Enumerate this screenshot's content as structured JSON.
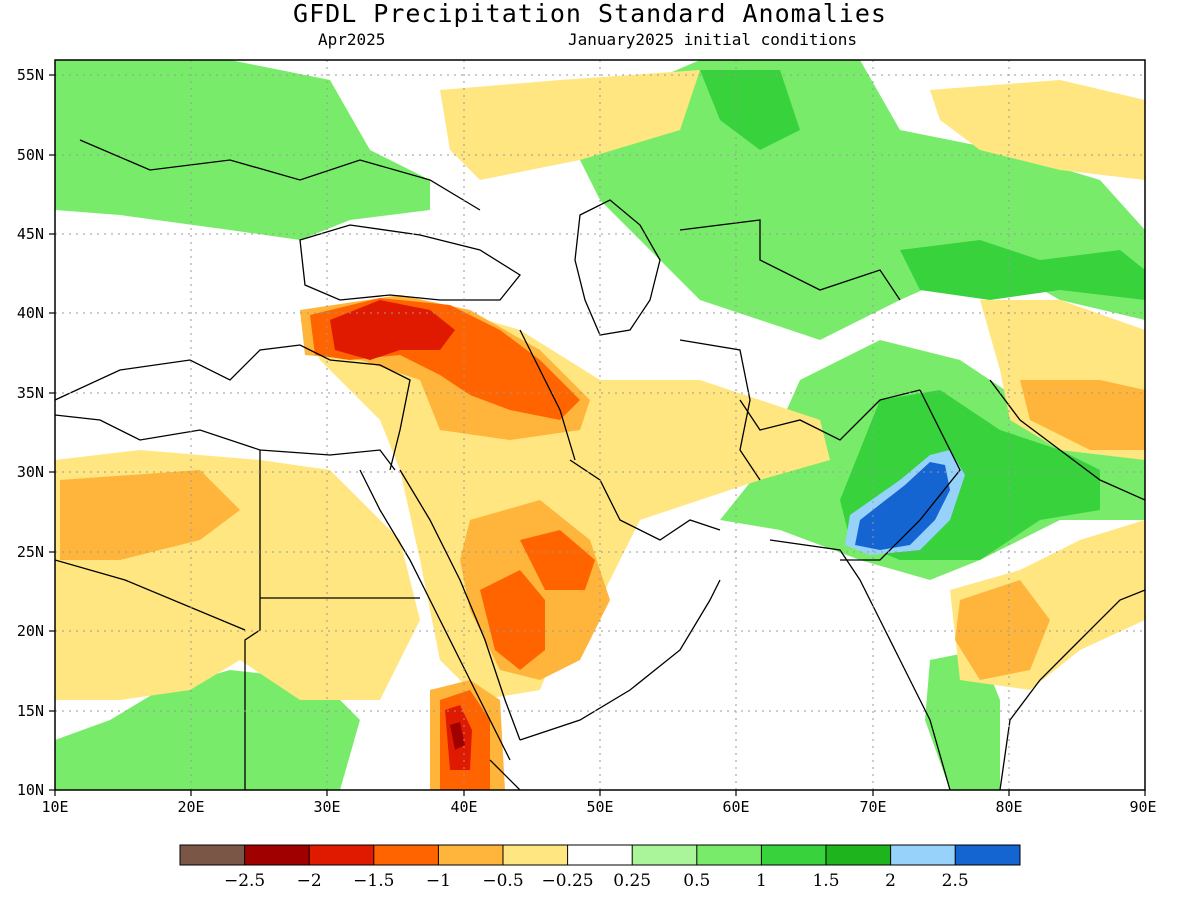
{
  "title": "GFDL Precipitation Standard Anomalies",
  "subtitle_left": "Apr2025",
  "subtitle_right": "January2025 initial conditions",
  "map": {
    "lon_range": [
      10,
      90
    ],
    "lat_range": [
      10,
      56
    ],
    "lon_ticks": [
      "10E",
      "20E",
      "30E",
      "40E",
      "50E",
      "60E",
      "70E",
      "80E",
      "90E"
    ],
    "lat_ticks": [
      "55N",
      "50N",
      "45N",
      "40N",
      "35N",
      "30N",
      "25N",
      "20N",
      "15N",
      "10N"
    ],
    "grid": "dotted"
  },
  "colorbar": {
    "colors": [
      "#7a5647",
      "#a00000",
      "#e01a00",
      "#ff6400",
      "#ffb43c",
      "#ffe680",
      "#ffffff",
      "#aaf59a",
      "#78ec6a",
      "#37d23c",
      "#1eb41e",
      "#96d2fa",
      "#1464d2"
    ],
    "labels": [
      "−2.5",
      "−2",
      "−1.5",
      "−1",
      "−0.5",
      "−0.25",
      "0.25",
      "0.5",
      "1",
      "1.5",
      "2",
      "2.5"
    ]
  },
  "anomaly_regions": [
    {
      "level": "-1.5",
      "color": "#e01a00",
      "place": "central Anatolia"
    },
    {
      "level": "-1",
      "color": "#ff6400",
      "place": "northern Iraq"
    },
    {
      "level": "-1",
      "color": "#ff6400",
      "place": "central Saudi Arabia"
    },
    {
      "level": "-1.5",
      "color": "#e01a00",
      "place": "northern Ethiopia"
    },
    {
      "level": "1.5",
      "color": "#37d23c",
      "place": "Pakistan"
    },
    {
      "level": "2.5",
      "color": "#1464d2",
      "place": "Thar region"
    },
    {
      "level": "1",
      "color": "#78ec6a",
      "place": "Kazakhstan"
    },
    {
      "level": "1",
      "color": "#78ec6a",
      "place": "central Europe"
    }
  ]
}
